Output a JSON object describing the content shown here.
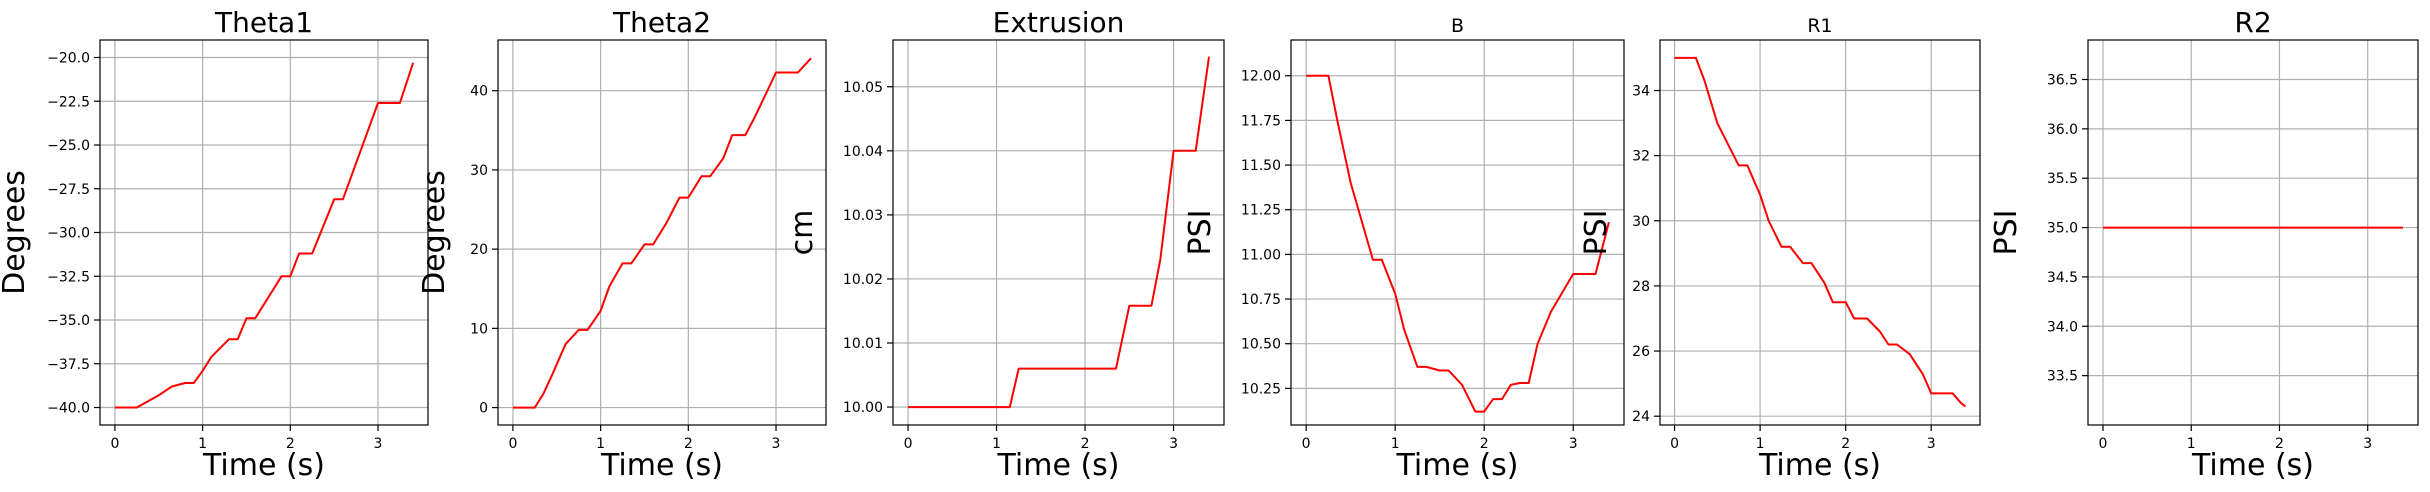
{
  "figure": {
    "background": "#ffffff",
    "line_color": "#ff0000",
    "grid_color": "#b0b0b0"
  },
  "chart_data": [
    {
      "type": "line",
      "title": "Theta1",
      "title_size": "large",
      "xlabel": "Time (s)",
      "ylabel": "Degrees",
      "xlim": [
        -0.17,
        3.57
      ],
      "ylim": [
        -41.0,
        -19.0
      ],
      "xticks": [
        0,
        1,
        2,
        3
      ],
      "xtick_labels": [
        "0",
        "1",
        "2",
        "3"
      ],
      "yticks": [
        -40.0,
        -37.5,
        -35.0,
        -32.5,
        -30.0,
        -27.5,
        -25.0,
        -22.5,
        -20.0
      ],
      "ytick_labels": [
        "−40.0",
        "−37.5",
        "−35.0",
        "−32.5",
        "−30.0",
        "−27.5",
        "−25.0",
        "−22.5",
        "−20.0"
      ],
      "grid": true,
      "color": "#ff0000",
      "series": [
        {
          "x": [
            0,
            0.25,
            0.5,
            0.65,
            0.8,
            0.9,
            1.0,
            1.1,
            1.3,
            1.4,
            1.5,
            1.6,
            1.9,
            2.0,
            2.1,
            2.25,
            2.5,
            2.6,
            3.0,
            3.25,
            3.4
          ],
          "y": [
            -40.0,
            -40.0,
            -39.3,
            -38.8,
            -38.6,
            -38.6,
            -37.9,
            -37.1,
            -36.1,
            -36.1,
            -34.9,
            -34.9,
            -32.5,
            -32.5,
            -31.2,
            -31.2,
            -28.1,
            -28.1,
            -22.6,
            -22.6,
            -20.3
          ]
        }
      ]
    },
    {
      "type": "line",
      "title": "Theta2",
      "title_size": "large",
      "xlabel": "Time (s)",
      "ylabel": "Degrees",
      "xlim": [
        -0.17,
        3.57
      ],
      "ylim": [
        -2.2,
        46.4
      ],
      "xticks": [
        0,
        1,
        2,
        3
      ],
      "xtick_labels": [
        "0",
        "1",
        "2",
        "3"
      ],
      "yticks": [
        0,
        10,
        20,
        30,
        40
      ],
      "ytick_labels": [
        "0",
        "10",
        "20",
        "30",
        "40"
      ],
      "grid": true,
      "color": "#ff0000",
      "series": [
        {
          "x": [
            0,
            0.25,
            0.35,
            0.45,
            0.6,
            0.75,
            0.85,
            1.0,
            1.1,
            1.25,
            1.35,
            1.5,
            1.6,
            1.75,
            1.9,
            2.0,
            2.15,
            2.25,
            2.4,
            2.5,
            2.65,
            2.75,
            2.85,
            3.0,
            3.25,
            3.4
          ],
          "y": [
            0,
            0,
            1.8,
            4.2,
            8.0,
            9.8,
            9.8,
            12.2,
            15.3,
            18.2,
            18.2,
            20.6,
            20.6,
            23.3,
            26.5,
            26.5,
            29.2,
            29.2,
            31.5,
            34.4,
            34.4,
            36.5,
            38.8,
            42.3,
            42.3,
            44.1
          ]
        }
      ]
    },
    {
      "type": "line",
      "title": "Extrusion",
      "title_size": "large",
      "xlabel": "Time (s)",
      "ylabel": "cm",
      "xlim": [
        -0.17,
        3.57
      ],
      "ylim": [
        9.9972,
        10.0573
      ],
      "xticks": [
        0,
        1,
        2,
        3
      ],
      "xtick_labels": [
        "0",
        "1",
        "2",
        "3"
      ],
      "yticks": [
        10.0,
        10.01,
        10.02,
        10.03,
        10.04,
        10.05
      ],
      "ytick_labels": [
        "10.00",
        "10.01",
        "10.02",
        "10.03",
        "10.04",
        "10.05"
      ],
      "grid": true,
      "color": "#ff0000",
      "series": [
        {
          "x": [
            0,
            0.6,
            1.15,
            1.25,
            2.35,
            2.5,
            2.75,
            2.85,
            3.0,
            3.25,
            3.4
          ],
          "y": [
            10.0,
            10.0,
            10.0,
            10.006,
            10.006,
            10.0158,
            10.0158,
            10.023,
            10.04,
            10.04,
            10.0547
          ]
        }
      ]
    },
    {
      "type": "line",
      "title": "B",
      "title_size": "small",
      "xlabel": "Time (s)",
      "ylabel": "PSI",
      "xlim": [
        -0.17,
        3.57
      ],
      "ylim": [
        10.045,
        12.2
      ],
      "xticks": [
        0,
        1,
        2,
        3
      ],
      "xtick_labels": [
        "0",
        "1",
        "2",
        "3"
      ],
      "yticks": [
        10.25,
        10.5,
        10.75,
        11.0,
        11.25,
        11.5,
        11.75,
        12.0
      ],
      "ytick_labels": [
        "10.25",
        "10.50",
        "10.75",
        "11.00",
        "11.25",
        "11.50",
        "11.75",
        "12.00"
      ],
      "grid": true,
      "color": "#ff0000",
      "series": [
        {
          "x": [
            0,
            0.25,
            0.35,
            0.5,
            0.75,
            0.85,
            1.0,
            1.1,
            1.25,
            1.35,
            1.5,
            1.6,
            1.75,
            1.9,
            2.0,
            2.1,
            2.2,
            2.3,
            2.4,
            2.5,
            2.6,
            2.75,
            3.0,
            3.25,
            3.4
          ],
          "y": [
            12.0,
            12.0,
            11.75,
            11.4,
            10.97,
            10.97,
            10.78,
            10.58,
            10.37,
            10.37,
            10.35,
            10.35,
            10.27,
            10.12,
            10.12,
            10.19,
            10.19,
            10.27,
            10.28,
            10.28,
            10.5,
            10.68,
            10.89,
            10.89,
            11.18
          ]
        }
      ]
    },
    {
      "type": "line",
      "title": "R1",
      "title_size": "small",
      "xlabel": "Time (s)",
      "ylabel": "PSI",
      "xlim": [
        -0.17,
        3.57
      ],
      "ylim": [
        23.73,
        35.55
      ],
      "xticks": [
        0,
        1,
        2,
        3
      ],
      "xtick_labels": [
        "0",
        "1",
        "2",
        "3"
      ],
      "yticks": [
        24,
        26,
        28,
        30,
        32,
        34
      ],
      "ytick_labels": [
        "24",
        "26",
        "28",
        "30",
        "32",
        "34"
      ],
      "grid": true,
      "color": "#ff0000",
      "series": [
        {
          "x": [
            0,
            0.25,
            0.35,
            0.5,
            0.75,
            0.85,
            1.0,
            1.1,
            1.25,
            1.35,
            1.5,
            1.6,
            1.75,
            1.85,
            2.0,
            2.1,
            2.25,
            2.4,
            2.5,
            2.6,
            2.75,
            2.9,
            3.0,
            3.1,
            3.25,
            3.35,
            3.4
          ],
          "y": [
            35.0,
            35.0,
            34.3,
            33.0,
            31.7,
            31.7,
            30.8,
            30.0,
            29.2,
            29.2,
            28.7,
            28.7,
            28.1,
            27.5,
            27.5,
            27.0,
            27.0,
            26.6,
            26.2,
            26.2,
            25.9,
            25.3,
            24.7,
            24.7,
            24.7,
            24.4,
            24.3
          ]
        }
      ]
    },
    {
      "type": "line",
      "title": "R2",
      "title_size": "large",
      "xlabel": "Time (s)",
      "ylabel": "PSI",
      "xlim": [
        -0.17,
        3.57
      ],
      "ylim": [
        33.0,
        36.9
      ],
      "xticks": [
        0,
        1,
        2,
        3
      ],
      "xtick_labels": [
        "0",
        "1",
        "2",
        "3"
      ],
      "yticks": [
        33.5,
        34.0,
        34.5,
        35.0,
        35.5,
        36.0,
        36.5
      ],
      "ytick_labels": [
        "33.5",
        "34.0",
        "34.5",
        "35.0",
        "35.5",
        "36.0",
        "36.5"
      ],
      "grid": true,
      "color": "#ff0000",
      "series": [
        {
          "x": [
            0,
            3.4
          ],
          "y": [
            35.0,
            35.0
          ]
        }
      ]
    }
  ]
}
